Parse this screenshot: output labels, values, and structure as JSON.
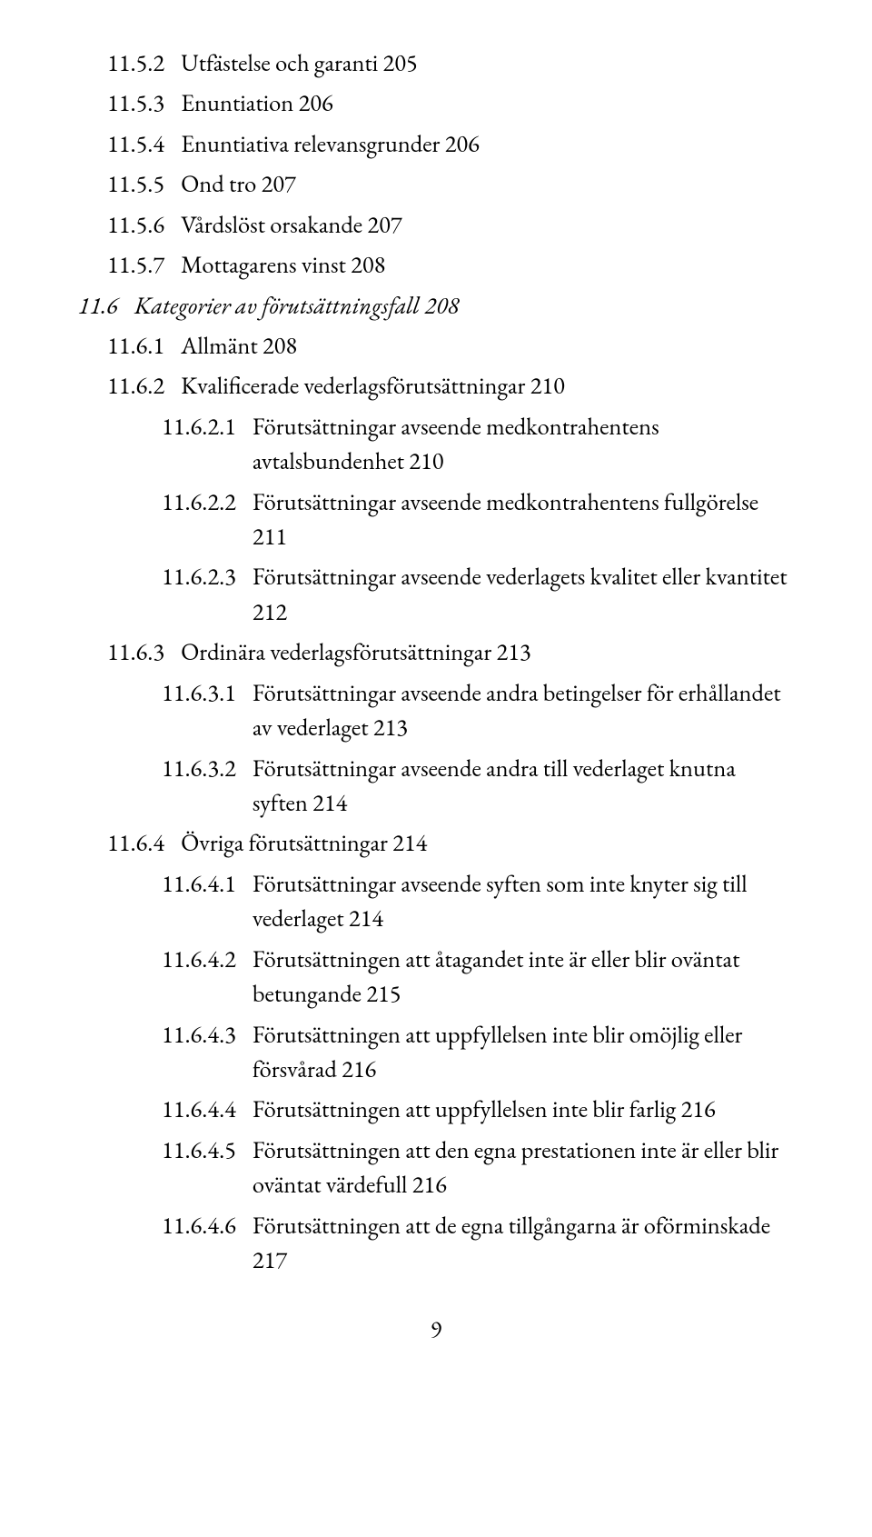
{
  "font_family": "Garamond",
  "text_color": "#000000",
  "background_color": "#ffffff",
  "base_fontsize_pt": 20,
  "page_number": "9",
  "entries": [
    {
      "level": "a",
      "num": "11.5.2",
      "text": "Utfästelse och garanti 205"
    },
    {
      "level": "a",
      "num": "11.5.3",
      "text": "Enuntiation 206"
    },
    {
      "level": "a",
      "num": "11.5.4",
      "text": "Enuntiativa relevansgrunder 206"
    },
    {
      "level": "a",
      "num": "11.5.5",
      "text": "Ond tro 207"
    },
    {
      "level": "a",
      "num": "11.5.6",
      "text": "Vårdslöst orsakande 207"
    },
    {
      "level": "a",
      "num": "11.5.7",
      "text": "Mottagarens vinst 208"
    },
    {
      "level": "b",
      "num": "11.6",
      "text": "Kategorier av förutsättningsfall 208"
    },
    {
      "level": "c",
      "num": "11.6.1",
      "text": "Allmänt 208"
    },
    {
      "level": "c",
      "num": "11.6.2",
      "text": "Kvalificerade vederlagsförutsättningar 210"
    },
    {
      "level": "d",
      "num": "11.6.2.1",
      "text": "Förutsättningar avseende medkontrahentens avtalsbundenhet 210"
    },
    {
      "level": "d",
      "num": "11.6.2.2",
      "text": "Förutsättningar avseende medkontrahentens fullgörelse 211"
    },
    {
      "level": "d",
      "num": "11.6.2.3",
      "text": "Förutsättningar avseende vederlagets kvalitet eller kvantitet 212"
    },
    {
      "level": "c",
      "num": "11.6.3",
      "text": "Ordinära vederlagsförutsättningar 213"
    },
    {
      "level": "d",
      "num": "11.6.3.1",
      "text": "Förutsättningar avseende andra betingelser för erhållandet av vederlaget 213"
    },
    {
      "level": "d",
      "num": "11.6.3.2",
      "text": "Förutsättningar avseende andra till vederlaget knutna syften 214"
    },
    {
      "level": "c",
      "num": "11.6.4",
      "text": "Övriga förutsättningar 214"
    },
    {
      "level": "d",
      "num": "11.6.4.1",
      "text": "Förutsättningar avseende syften som inte knyter sig till vederlaget 214"
    },
    {
      "level": "d",
      "num": "11.6.4.2",
      "text": "Förutsättningen att åtagandet inte är eller blir oväntat betungande 215"
    },
    {
      "level": "d",
      "num": "11.6.4.3",
      "text": "Förutsättningen att uppfyllelsen inte blir omöjlig eller försvårad 216"
    },
    {
      "level": "d",
      "num": "11.6.4.4",
      "text": "Förutsättningen att uppfyllelsen inte blir farlig 216"
    },
    {
      "level": "d",
      "num": "11.6.4.5",
      "text": "Förutsättningen att den egna prestationen inte är eller blir oväntat värdefull 216"
    },
    {
      "level": "d",
      "num": "11.6.4.6",
      "text": "Förutsättningen att de egna tillgångarna är oförminskade 217"
    }
  ]
}
